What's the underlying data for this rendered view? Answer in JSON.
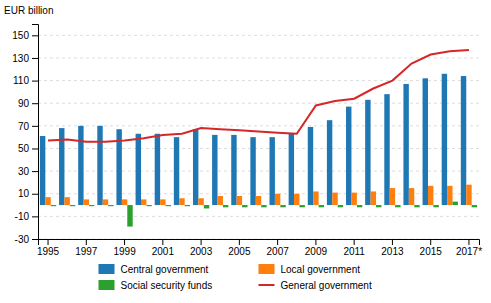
{
  "chart_data": {
    "type": "bar",
    "ylabel": "EUR billion",
    "categories": [
      "1995",
      null,
      "1997",
      null,
      "1999",
      null,
      "2001",
      null,
      "2003",
      null,
      "2005",
      null,
      "2007",
      null,
      "2009",
      null,
      "2011",
      null,
      "2013",
      null,
      "2015",
      null,
      "2017*"
    ],
    "series": [
      {
        "name": "Central government",
        "values": [
          61,
          68,
          70,
          70,
          67,
          63,
          63,
          60,
          67,
          62,
          62,
          60,
          60,
          63,
          69,
          75,
          87,
          93,
          98,
          107,
          112,
          116,
          114
        ]
      },
      {
        "name": "Local government",
        "values": [
          7,
          7,
          5,
          5,
          5,
          5,
          5,
          6,
          6,
          8,
          8,
          8,
          10,
          10,
          12,
          11,
          11,
          12,
          15,
          15,
          17,
          17,
          18
        ]
      },
      {
        "name": "Social security funds",
        "values": [
          -1,
          -1,
          -1,
          -1,
          -19,
          -1,
          -1,
          -1,
          -3,
          -2,
          -2,
          -2,
          -2,
          -2,
          -2,
          -2,
          -2,
          -2,
          -2,
          -2,
          -2,
          3,
          -2
        ]
      },
      {
        "name": "General government",
        "type": "line",
        "values": [
          57,
          58,
          56,
          56,
          57,
          59,
          62,
          63,
          68,
          67,
          66,
          65,
          64,
          63,
          88,
          92,
          94,
          103,
          110,
          125,
          133,
          136,
          137
        ]
      }
    ],
    "ylim": [
      -30,
      160
    ],
    "yticks": [
      -30,
      -10,
      10,
      30,
      50,
      70,
      90,
      110,
      130,
      150
    ],
    "grid": true,
    "legend": "bottom"
  }
}
